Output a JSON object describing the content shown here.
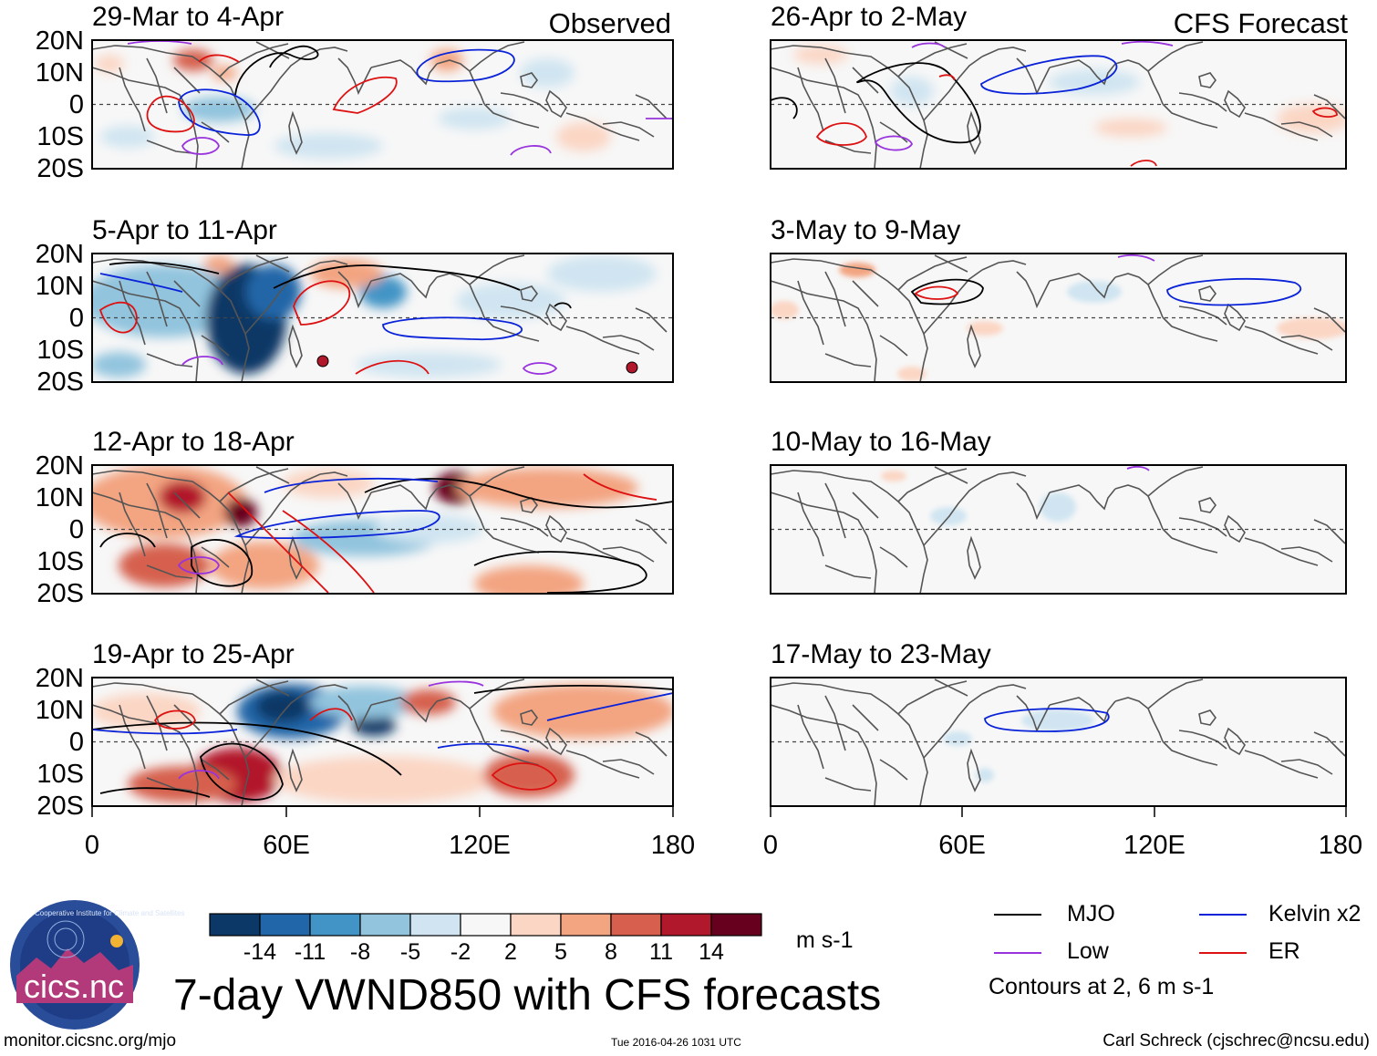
{
  "header": {
    "left_column_label": "Observed",
    "right_column_label": "CFS Forecast"
  },
  "panels": {
    "observed": [
      {
        "title": "29-Mar to 4-Apr"
      },
      {
        "title": "5-Apr to 11-Apr"
      },
      {
        "title": "12-Apr to 18-Apr"
      },
      {
        "title": "19-Apr to 25-Apr"
      }
    ],
    "forecast": [
      {
        "title": "26-Apr to 2-May"
      },
      {
        "title": "3-May to 9-May"
      },
      {
        "title": "10-May to 16-May"
      },
      {
        "title": "17-May to 23-May"
      }
    ]
  },
  "axes": {
    "lat_labels": [
      "20N",
      "10N",
      "0",
      "10S",
      "20S"
    ],
    "lon_labels": [
      "0",
      "60E",
      "120E",
      "180"
    ]
  },
  "colorbar": {
    "ticks": [
      "-14",
      "-11",
      "-8",
      "-5",
      "-2",
      "2",
      "5",
      "8",
      "11",
      "14"
    ],
    "colors": [
      "#0b3866",
      "#2066a8",
      "#4294c6",
      "#92c4de",
      "#d0e5f1",
      "#f7f7f7",
      "#fbd6c4",
      "#f3a481",
      "#d6604d",
      "#b2182b",
      "#67001f"
    ],
    "unit": "m s-1"
  },
  "legend": {
    "items": [
      {
        "label": "MJO",
        "color": "#000000"
      },
      {
        "label": "Kelvin x2",
        "color": "#0a23d9"
      },
      {
        "label": "Low",
        "color": "#9933dd"
      },
      {
        "label": "ER",
        "color": "#dd1111"
      }
    ],
    "note": "Contours at 2, 6 m s-1"
  },
  "logo": {
    "text": "cics.nc",
    "ring_text": "Cooperative Institute for Climate and Satellites"
  },
  "main_title": "7-day VWND850 with CFS forecasts",
  "footer": {
    "url": "monitor.cicsnc.org/mjo",
    "timestamp": "Tue 2016-04-26 1031 UTC",
    "author": "Carl Schreck (cjschrec@ncsu.edu)"
  }
}
